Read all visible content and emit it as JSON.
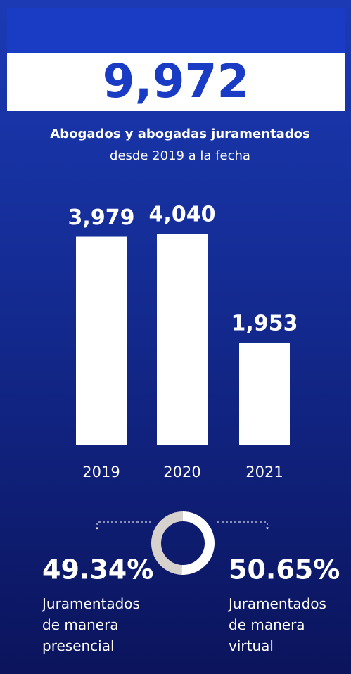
{
  "headline": "9,972",
  "chart_data": [
    {
      "type": "bar",
      "title": "Abogados y abogadas juramentados",
      "subtitle": "desde 2019 a la fecha",
      "categories": [
        "2019",
        "2020",
        "2021"
      ],
      "values": [
        3979,
        4040,
        1953
      ],
      "value_labels": [
        "3,979",
        "4,040",
        "1,953"
      ],
      "color": "#ffffff"
    },
    {
      "type": "pie",
      "labels": [
        "Juramentados de manera presencial",
        "Juramentados de manera virtual"
      ],
      "values": [
        49.34,
        50.65
      ],
      "value_labels": [
        "49.34%",
        "50.65%"
      ],
      "colors": [
        "#d6d1cc",
        "#ffffff"
      ]
    }
  ]
}
